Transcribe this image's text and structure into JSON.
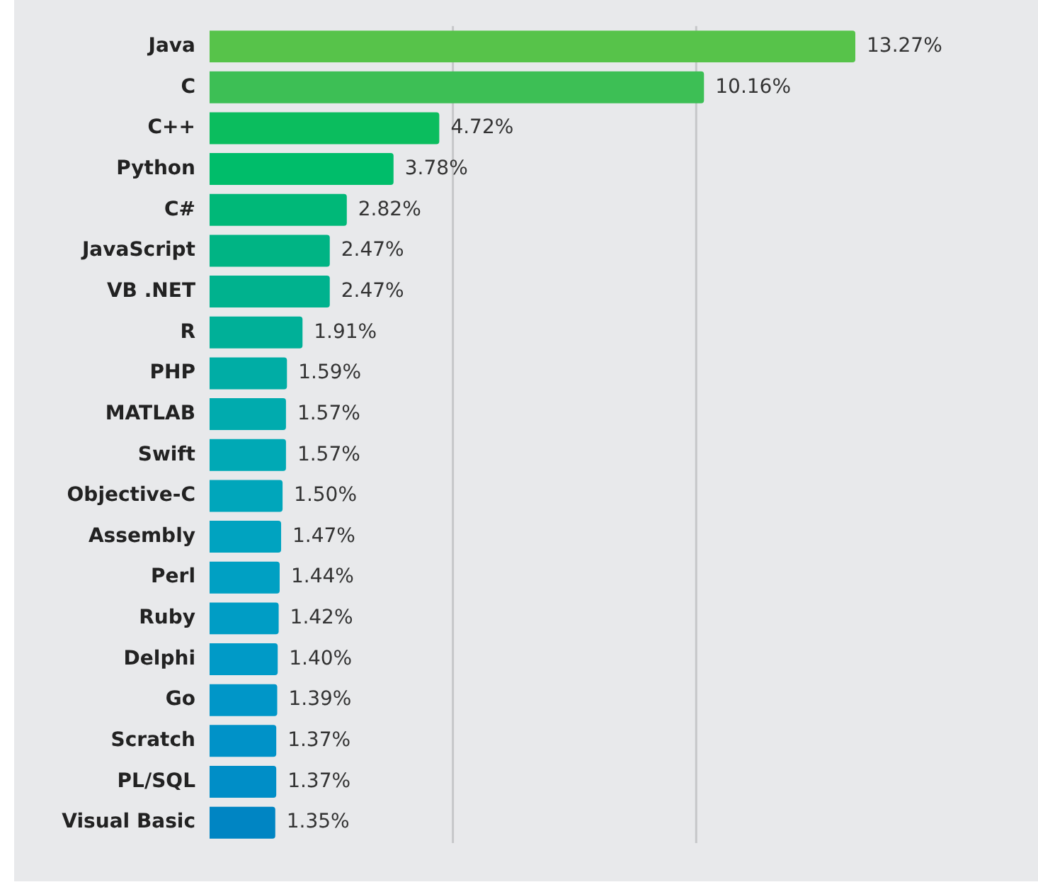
{
  "chart_data": {
    "type": "bar",
    "orientation": "horizontal",
    "categories": [
      "Java",
      "C",
      "C++",
      "Python",
      "C#",
      "JavaScript",
      "VB .NET",
      "R",
      "PHP",
      "MATLAB",
      "Swift",
      "Objective-C",
      "Assembly",
      "Perl",
      "Ruby",
      "Delphi",
      "Go",
      "Scratch",
      "PL/SQL",
      "Visual Basic"
    ],
    "values": [
      13.27,
      10.16,
      4.72,
      3.78,
      2.82,
      2.47,
      2.47,
      1.91,
      1.59,
      1.57,
      1.57,
      1.5,
      1.47,
      1.44,
      1.42,
      1.4,
      1.39,
      1.37,
      1.37,
      1.35
    ],
    "value_labels": [
      "13.27%",
      "10.16%",
      "4.72%",
      "3.78%",
      "2.82%",
      "2.47%",
      "2.47%",
      "1.91%",
      "1.59%",
      "1.57%",
      "1.57%",
      "1.50%",
      "1.47%",
      "1.44%",
      "1.42%",
      "1.40%",
      "1.39%",
      "1.37%",
      "1.37%",
      "1.35%"
    ],
    "colors": [
      "#57c34a",
      "#3dbf55",
      "#0bbd5e",
      "#00bd6a",
      "#00b878",
      "#00b484",
      "#00b28e",
      "#00b098",
      "#00ada5",
      "#00abae",
      "#00a9b5",
      "#00a6bb",
      "#00a3c0",
      "#00a0c3",
      "#009dc5",
      "#009ac7",
      "#0096c8",
      "#0092c8",
      "#008ec7",
      "#0085c3"
    ],
    "ref_lines": [
      {
        "axis": "x",
        "value": 5,
        "color": "#c6c7c9"
      },
      {
        "axis": "x",
        "value": 10,
        "color": "#c6c7c9"
      }
    ],
    "tick_labels": "y"
  }
}
